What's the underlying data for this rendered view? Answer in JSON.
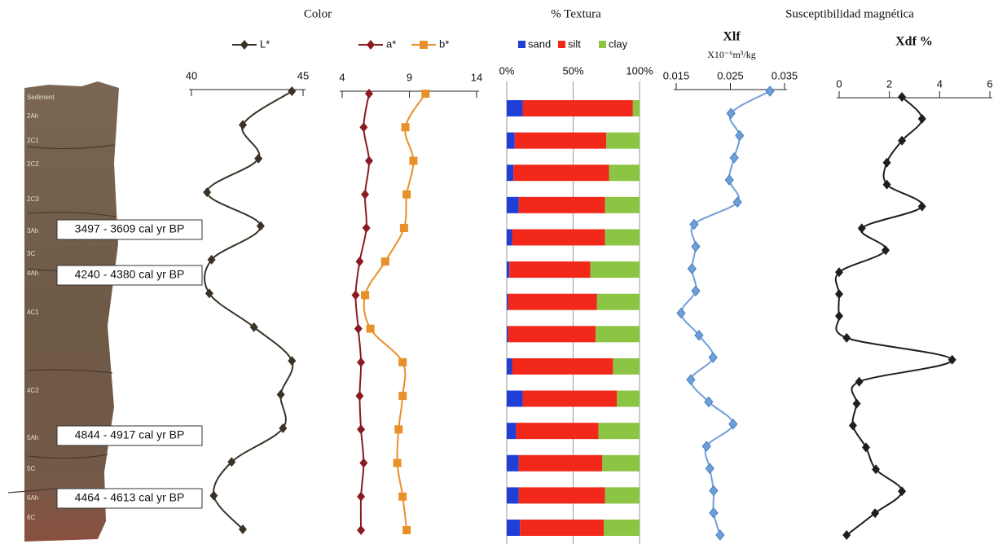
{
  "headings": [
    "Color",
    "% Textura",
    "Susceptibilidad magnética"
  ],
  "core": {
    "horizons": [
      "Sediment",
      "2Ah",
      "2C1",
      "2C2",
      "2C3",
      "3Ah",
      "3C",
      "4Ah",
      "4C1",
      "4C2",
      "5Ah",
      "5C",
      "6Ah",
      "6C"
    ],
    "dates": [
      "3497 - 3609 cal yr BP",
      "4240 - 4380 cal yr BP",
      "4844 - 4917 cal yr BP",
      "4464 - 4613 cal yr BP"
    ]
  },
  "chart_data": [
    {
      "type": "line",
      "xlim": [
        40,
        45
      ],
      "xticks": [
        40,
        45
      ],
      "series": [
        {
          "name": "L*",
          "color": "#3b3226",
          "marker": "diamond",
          "values": [
            44.5,
            42.3,
            43.0,
            40.7,
            43.1,
            40.9,
            40.8,
            42.8,
            44.5,
            44.0,
            44.1,
            41.8,
            41.0,
            42.3
          ]
        }
      ]
    },
    {
      "type": "line",
      "xlim": [
        4,
        14
      ],
      "xticks": [
        4,
        9,
        14
      ],
      "series": [
        {
          "name": "a*",
          "color": "#8b1a22",
          "marker": "diamond",
          "values": [
            6.0,
            5.6,
            6.0,
            5.7,
            5.8,
            5.3,
            5.0,
            5.2,
            5.4,
            5.3,
            5.4,
            5.6,
            5.4,
            5.4
          ]
        },
        {
          "name": "b*",
          "color": "#e8902a",
          "marker": "square",
          "values": [
            10.2,
            8.7,
            9.3,
            8.8,
            8.6,
            7.2,
            5.7,
            6.1,
            8.5,
            8.5,
            8.2,
            8.1,
            8.5,
            8.8
          ]
        }
      ]
    },
    {
      "type": "bar",
      "stacked": true,
      "orientation": "horizontal",
      "grid": true,
      "xlim": [
        0,
        100
      ],
      "xticks": [
        {
          "value": 0,
          "label": "0%"
        },
        {
          "value": 50,
          "label": "50%"
        },
        {
          "value": 100,
          "label": "100%"
        }
      ],
      "series": [
        {
          "name": "sand",
          "color": "#1f3fd6",
          "values": [
            12,
            6,
            5,
            9,
            4,
            2,
            1,
            1,
            4,
            12,
            7,
            9,
            9,
            10
          ]
        },
        {
          "name": "silt",
          "color": "#f2281a",
          "values": [
            83,
            69,
            72,
            65,
            70,
            61,
            67,
            66,
            76,
            71,
            62,
            63,
            65,
            63
          ]
        },
        {
          "name": "clay",
          "color": "#8cc444",
          "values": [
            5,
            25,
            23,
            26,
            26,
            37,
            32,
            33,
            20,
            17,
            31,
            28,
            26,
            27
          ]
        }
      ]
    },
    {
      "type": "line",
      "title": "Xlf",
      "subtitle": "X10⁻⁶m³/kg",
      "xlim": [
        0.015,
        0.035
      ],
      "xticks": [
        0.015,
        0.025,
        0.035
      ],
      "series": [
        {
          "name": "Xlf",
          "color": "#6f9fd8",
          "marker": "diamond",
          "values": [
            0.0323,
            0.0251,
            0.0267,
            0.0257,
            0.0248,
            0.0263,
            0.0183,
            0.0186,
            0.0179,
            0.0186,
            0.0159,
            0.0192,
            0.0218,
            0.0177,
            0.021,
            0.0255,
            0.0206,
            0.0212,
            0.0219,
            0.0219,
            0.0231
          ]
        }
      ]
    },
    {
      "type": "line",
      "title": "Xdf %",
      "xlim": [
        0,
        6
      ],
      "xticks": [
        0,
        2,
        4,
        6
      ],
      "series": [
        {
          "name": "Xdf %",
          "color": "#1e1e1e",
          "marker": "diamond",
          "values": [
            2.5,
            3.3,
            2.5,
            1.9,
            1.9,
            3.3,
            0.9,
            1.85,
            0,
            0,
            0,
            0.3,
            4.5,
            0.8,
            0.7,
            0.55,
            1.07,
            1.46,
            2.5,
            1.43,
            0.3
          ]
        }
      ]
    }
  ]
}
